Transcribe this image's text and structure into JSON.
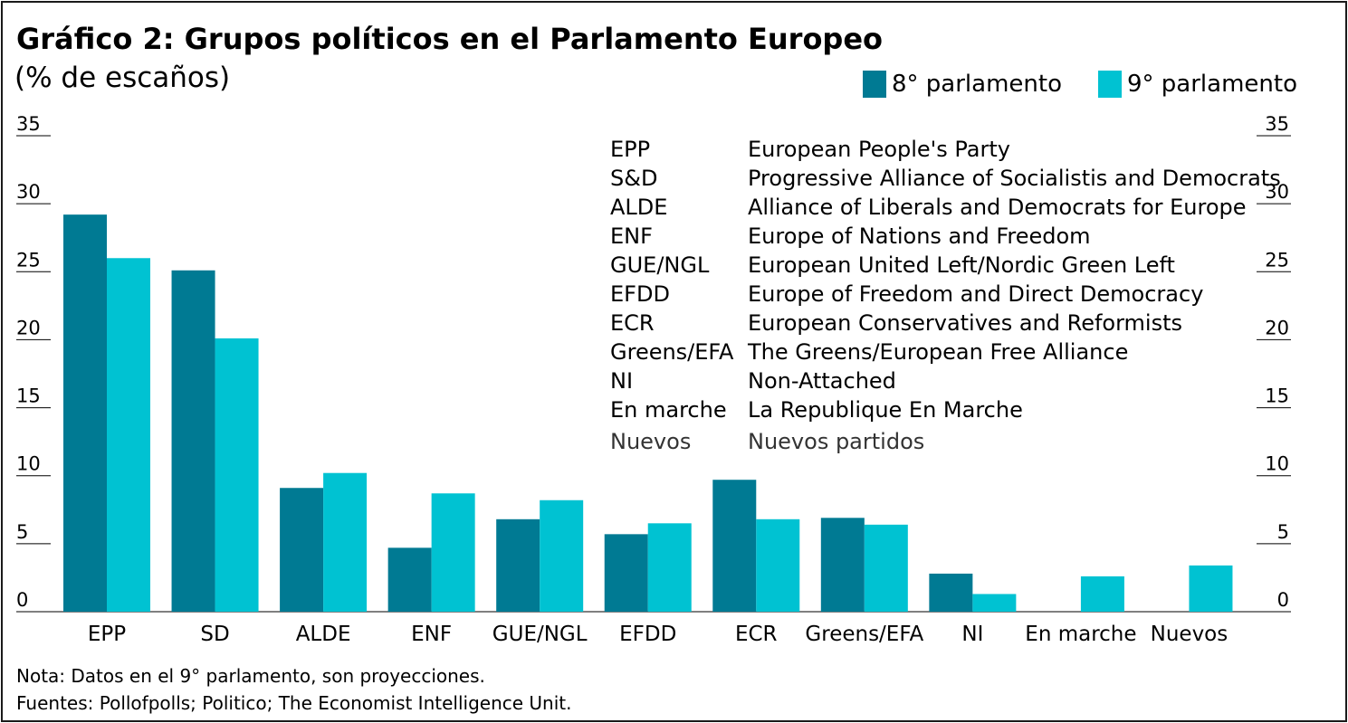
{
  "header": {
    "title": "Gráfico 2: Grupos políticos en el Parlamento Europeo",
    "subtitle": "(% de escaños)"
  },
  "colors": {
    "series1": "#007a93",
    "series2": "#00c2d2"
  },
  "glossary": [
    {
      "abbr": "EPP",
      "full": "European People's Party"
    },
    {
      "abbr": "S&D",
      "full": "Progressive Alliance of Socialistis and Democrats"
    },
    {
      "abbr": "ALDE",
      "full": "Alliance of Liberals and Democrats for Europe"
    },
    {
      "abbr": "ENF",
      "full": "Europe of Nations and Freedom"
    },
    {
      "abbr": "GUE/NGL",
      "full": "European United Left/Nordic Green Left"
    },
    {
      "abbr": "EFDD",
      "full": "Europe of Freedom and Direct Democracy"
    },
    {
      "abbr": "ECR",
      "full": "European Conservatives and Reformists"
    },
    {
      "abbr": "Greens/EFA",
      "full": "The Greens/European Free Alliance"
    },
    {
      "abbr": "NI",
      "full": "Non-Attached"
    },
    {
      "abbr": "En marche",
      "full": "La Republique En Marche"
    },
    {
      "abbr": "Nuevos",
      "full": "Nuevos partidos"
    }
  ],
  "footer": {
    "note": "Nota: Datos en el 9° parlamento, son proyecciones.",
    "sources": "Fuentes: Pollofpolls; Politico; The Economist Intelligence Unit."
  },
  "chart_data": {
    "type": "bar",
    "title": "Gráfico 2: Grupos políticos en el Parlamento Europeo",
    "subtitle": "(% de escaños)",
    "categories": [
      "EPP",
      "SD",
      "ALDE",
      "ENF",
      "GUE/NGL",
      "EFDD",
      "ECR",
      "Greens/EFA",
      "NI",
      "En marche",
      "Nuevos"
    ],
    "series": [
      {
        "name": "8° parlamento",
        "values": [
          29.2,
          25.1,
          9.1,
          4.7,
          6.8,
          5.7,
          9.7,
          6.9,
          2.8,
          null,
          null
        ]
      },
      {
        "name": "9° parlamento",
        "values": [
          26.0,
          20.1,
          10.2,
          8.7,
          8.2,
          6.5,
          6.8,
          6.4,
          1.3,
          2.6,
          3.4
        ]
      }
    ],
    "ylim": [
      0,
      35
    ],
    "yticks": [
      0,
      5,
      10,
      15,
      20,
      25,
      30,
      35
    ],
    "y_axis_both_sides": true,
    "grid": false,
    "legend_position": "top-right"
  }
}
